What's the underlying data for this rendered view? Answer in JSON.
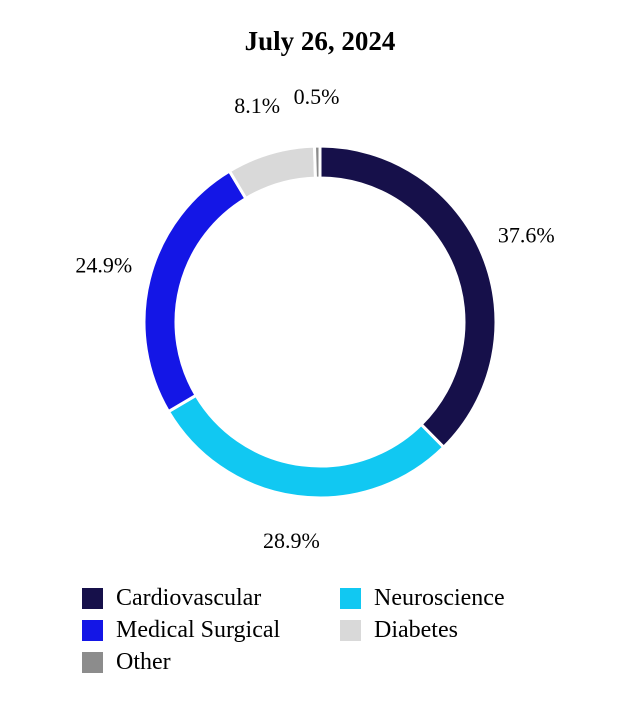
{
  "chart_data": {
    "type": "pie",
    "title": "July 26, 2024",
    "slices": [
      {
        "label": "Cardiovascular",
        "value": 37.6,
        "value_label": "37.6%",
        "color": "#16104a"
      },
      {
        "label": "Neuroscience",
        "value": 28.9,
        "value_label": "28.9%",
        "color": "#11c8f2"
      },
      {
        "label": "Medical Surgical",
        "value": 24.9,
        "value_label": "24.9%",
        "color": "#1416e6"
      },
      {
        "label": "Diabetes",
        "value": 8.1,
        "value_label": "8.1%",
        "color": "#d9d9d9"
      },
      {
        "label": "Other",
        "value": 0.5,
        "value_label": "0.5%",
        "color": "#8c8c8c"
      }
    ],
    "legend_order": [
      "Cardiovascular",
      "Neuroscience",
      "Medical Surgical",
      "Diabetes",
      "Other"
    ],
    "legend_position": "bottom",
    "donut": true
  }
}
